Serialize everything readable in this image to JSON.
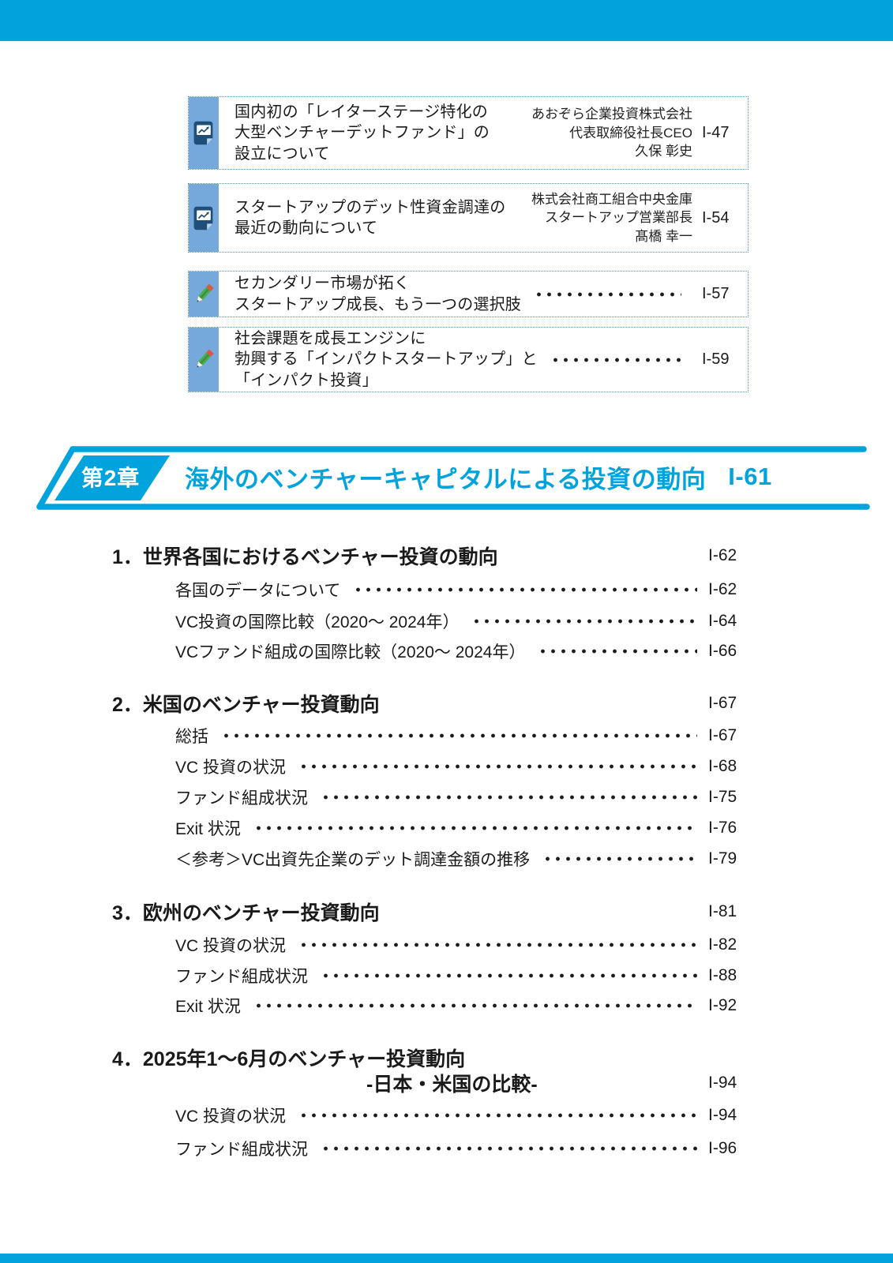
{
  "colors": {
    "accent_cyan": "#00A3DB",
    "stripe_blue": "#76A9DB",
    "dotted_border_blue": "#4E97D0",
    "doc_icon_navy": "#1F4E79",
    "pencil_green": "#4CAF50",
    "pencil_red": "#D85A44",
    "text": "#1A1A1A"
  },
  "featured_articles": [
    {
      "icon": "report-chart-icon",
      "title_lines": [
        "国内初の「レイターステージ特化の",
        "大型ベンチャーデットファンド」の",
        "設立について"
      ],
      "author_lines": [
        "あおぞら企業投資株式会社",
        "代表取締役社長CEO",
        "久保 彰史"
      ],
      "page": "I-47",
      "has_leader": false
    },
    {
      "icon": "report-chart-icon",
      "title_lines": [
        "スタートアップのデット性資金調達の",
        "最近の動向について"
      ],
      "author_lines": [
        "株式会社商工組合中央金庫",
        "スタートアップ営業部長",
        "髙橋 幸一"
      ],
      "page": "I-54",
      "has_leader": false
    },
    {
      "icon": "pencil-icon",
      "title_lines": [
        "セカンダリー市場が拓く",
        "スタートアップ成長、もう一つの選択肢"
      ],
      "author_lines": [],
      "page": "I-57",
      "has_leader": true
    },
    {
      "icon": "pencil-icon",
      "title_lines": [
        "社会課題を成長エンジンに",
        "勃興する「インパクトスタートアップ」と",
        "「インパクト投資」"
      ],
      "author_lines": [],
      "page": "I-59",
      "has_leader": true
    }
  ],
  "chapter": {
    "label": "第2章",
    "title": "海外のベンチャーキャピタルによる投資の動向",
    "page": "I-61"
  },
  "toc_sections": [
    {
      "heading": "1．世界各国におけるベンチャー投資の動向",
      "page": "I-62",
      "items": [
        {
          "label": "各国のデータについて",
          "page": "I-62"
        },
        {
          "label": "VC投資の国際比較（2020〜 2024年）",
          "page": "I-64"
        },
        {
          "label": "VCファンド組成の国際比較（2020〜 2024年）",
          "page": "I-66"
        }
      ]
    },
    {
      "heading": "2．米国のベンチャー投資動向",
      "page": "I-67",
      "items": [
        {
          "label": "総括",
          "page": "I-67"
        },
        {
          "label": "VC 投資の状況",
          "page": "I-68"
        },
        {
          "label": "ファンド組成状況",
          "page": "I-75"
        },
        {
          "label": "Exit 状況",
          "page": "I-76"
        },
        {
          "label": "＜参考＞VC出資先企業のデット調達金額の推移",
          "page": "I-79"
        }
      ]
    },
    {
      "heading": "3．欧州のベンチャー投資動向",
      "page": "I-81",
      "items": [
        {
          "label": "VC 投資の状況",
          "page": "I-82"
        },
        {
          "label": "ファンド組成状況",
          "page": "I-88"
        },
        {
          "label": "Exit 状況",
          "page": "I-92"
        }
      ]
    },
    {
      "heading": "4．2025年1〜6月のベンチャー投資動向",
      "heading_line2": "-日本・米国の比較-",
      "page": "I-94",
      "items": [
        {
          "label": "VC 投資の状況",
          "page": "I-94"
        },
        {
          "label": "ファンド組成状況",
          "page": "I-96"
        }
      ]
    }
  ]
}
